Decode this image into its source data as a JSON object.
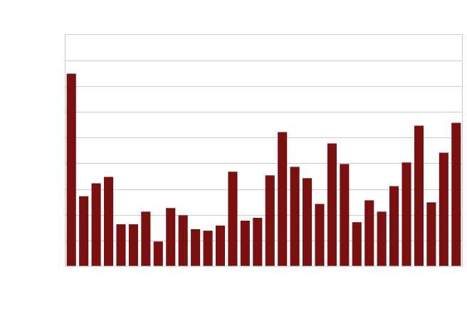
{
  "chart_data": {
    "type": "bar",
    "title": "",
    "xlabel": "",
    "ylabel": "",
    "grid": true,
    "ylim": [
      0,
      9
    ],
    "values": [
      7.48,
      2.72,
      3.22,
      3.47,
      1.63,
      1.63,
      2.12,
      0.96,
      2.26,
      1.98,
      1.44,
      1.38,
      1.58,
      3.67,
      1.77,
      1.88,
      3.53,
      5.21,
      3.86,
      3.42,
      2.42,
      4.77,
      3.97,
      1.71,
      2.56,
      2.12,
      3.11,
      4.03,
      5.46,
      2.48,
      4.41,
      5.57
    ],
    "bar_color": "#7a1010",
    "grid_color": "#cccccc",
    "frame_color": "#cccccc"
  }
}
